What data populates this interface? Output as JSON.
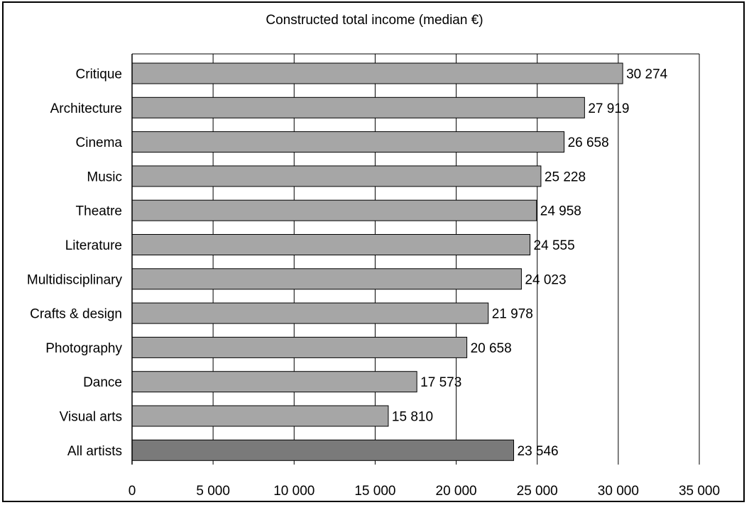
{
  "chart_data": {
    "type": "bar",
    "orientation": "horizontal",
    "title": "Constructed total income (median €)",
    "xlabel": "",
    "ylabel": "",
    "xlim": [
      0,
      35000
    ],
    "x_ticks": [
      0,
      5000,
      10000,
      15000,
      20000,
      25000,
      30000,
      35000
    ],
    "x_tick_labels": [
      "0",
      "5 000",
      "10 000",
      "15 000",
      "20 000",
      "25 000",
      "30 000",
      "35 000"
    ],
    "grid": "vertical gridlines",
    "categories": [
      "Critique",
      "Architecture",
      "Cinema",
      "Music",
      "Theatre",
      "Literature",
      "Multidisciplinary",
      "Crafts & design",
      "Photography",
      "Dance",
      "Visual arts",
      "All artists"
    ],
    "values": [
      30274,
      27919,
      26658,
      25228,
      24958,
      24555,
      24023,
      21978,
      20658,
      17573,
      15810,
      23546
    ],
    "value_labels": [
      "30 274",
      "27 919",
      "26 658",
      "25 228",
      "24 958",
      "24 555",
      "24 023",
      "21 978",
      "20 658",
      "17 573",
      "15 810",
      "23 546"
    ],
    "bar_color": "#a6a6a6",
    "highlight_category": "All artists",
    "highlight_color": "#7a7a7a"
  }
}
